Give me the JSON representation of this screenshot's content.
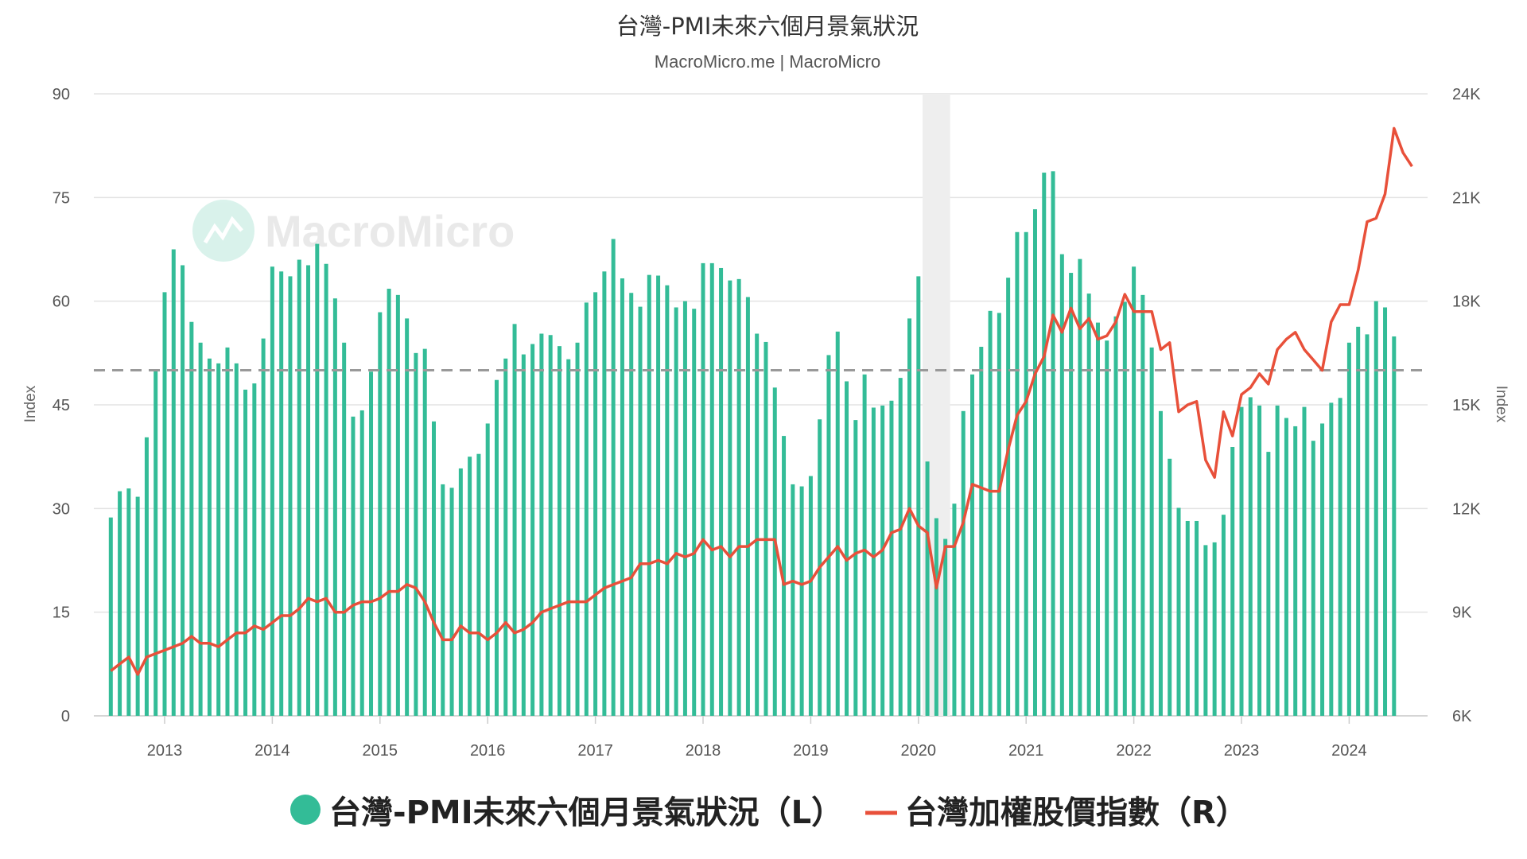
{
  "chart_data": {
    "type": "bar+line",
    "title": "台灣-PMI未來六個月景氣狀況",
    "subtitle": "MacroMicro.me | MacroMicro",
    "watermark": "MacroMicro",
    "ylabel_left": "Index",
    "ylabel_right": "Index",
    "ylim_left": [
      0,
      90
    ],
    "ylim_right": [
      6000,
      24000
    ],
    "yticks_left": [
      "0",
      "15",
      "30",
      "45",
      "60",
      "75",
      "90"
    ],
    "yticks_right": [
      "6K",
      "9K",
      "12K",
      "15K",
      "18K",
      "21K",
      "24K"
    ],
    "xticks": [
      "2013",
      "2014",
      "2015",
      "2016",
      "2017",
      "2018",
      "2019",
      "2020",
      "2021",
      "2022",
      "2023",
      "2024"
    ],
    "reference_line": 50,
    "shaded_period": [
      "2020-02",
      "2020-04"
    ],
    "grid": true,
    "legend_position": "bottom",
    "colors": {
      "bars": "#33bc97",
      "line": "#e8503a",
      "reference": "#999999",
      "shade": "#eeeeee"
    },
    "series": [
      {
        "name": "台灣-PMI未來六個月景氣狀況（L）",
        "axis": "left",
        "kind": "bar",
        "start": "2012-07",
        "values": [
          28.7,
          32.5,
          32.9,
          31.7,
          40.3,
          50.1,
          61.3,
          67.5,
          65.2,
          57,
          54,
          51.7,
          51,
          53.3,
          51,
          47.2,
          48.1,
          54.6,
          65,
          64.3,
          63.6,
          66,
          65.2,
          68.3,
          65.4,
          60.4,
          54,
          43.3,
          44.2,
          49.8,
          58.4,
          61.8,
          60.9,
          57.5,
          52.5,
          53.1,
          42.6,
          33.5,
          33,
          35.8,
          37.5,
          37.9,
          42.3,
          48.6,
          51.7,
          56.7,
          52.3,
          53.8,
          55.3,
          55.1,
          53.5,
          51.6,
          54,
          59.8,
          61.3,
          64.3,
          69,
          63.3,
          61.2,
          59.2,
          63.8,
          63.7,
          62.3,
          59.1,
          60,
          58.9,
          65.5,
          65.5,
          64.8,
          63,
          63.2,
          60.6,
          55.3,
          54.1,
          47.5,
          40.5,
          33.5,
          33.2,
          34.7,
          42.9,
          52.2,
          55.6,
          48.4,
          42.8,
          49.4,
          44.6,
          44.9,
          45.6,
          48.9,
          57.5,
          63.6,
          36.8,
          28.6,
          25.6,
          30.7,
          44.1,
          49.4,
          53.4,
          58.6,
          58.3,
          63.4,
          70,
          70,
          73.3,
          78.6,
          78.8,
          66.8,
          64.1,
          66.1,
          61.1,
          56.9,
          54.3,
          57.8,
          59.9,
          65,
          60.9,
          53.3,
          44.1,
          37.2,
          30.1,
          28.2,
          28.2,
          24.7,
          25.1,
          29.1,
          38.9,
          44.7,
          46.1,
          44.9,
          38.2,
          44.9,
          43.1,
          41.9,
          44.7,
          39.8,
          42.3,
          45.3,
          46,
          54,
          56.3,
          55.2,
          60,
          59.1,
          54.9
        ]
      },
      {
        "name": "台灣加權股價指數（R）",
        "axis": "right",
        "kind": "line",
        "start": "2012-07",
        "values": [
          7300,
          7500,
          7700,
          7200,
          7700,
          7800,
          7900,
          8000,
          8100,
          8300,
          8100,
          8100,
          8000,
          8200,
          8400,
          8400,
          8600,
          8500,
          8700,
          8900,
          8900,
          9100,
          9400,
          9300,
          9400,
          9000,
          9000,
          9200,
          9300,
          9300,
          9400,
          9600,
          9600,
          9800,
          9700,
          9300,
          8700,
          8200,
          8200,
          8600,
          8400,
          8400,
          8200,
          8400,
          8700,
          8400,
          8500,
          8700,
          9000,
          9100,
          9200,
          9300,
          9300,
          9300,
          9500,
          9700,
          9800,
          9900,
          10000,
          10400,
          10400,
          10500,
          10400,
          10700,
          10600,
          10700,
          11100,
          10800,
          10900,
          10600,
          10900,
          10900,
          11100,
          11100,
          11100,
          9800,
          9900,
          9800,
          9900,
          10300,
          10600,
          10900,
          10500,
          10700,
          10800,
          10600,
          10800,
          11300,
          11400,
          12000,
          11500,
          11300,
          9700,
          10900,
          10900,
          11600,
          12700,
          12600,
          12500,
          12500,
          13700,
          14700,
          15100,
          15900,
          16400,
          17600,
          17100,
          17800,
          17200,
          17500,
          16900,
          17000,
          17400,
          18200,
          17700,
          17700,
          17700,
          16600,
          16800,
          14800,
          15000,
          15100,
          13400,
          12900,
          14800,
          14100,
          15300,
          15500,
          15900,
          15600,
          16600,
          16900,
          17100,
          16600,
          16300,
          16000,
          17400,
          17900,
          17900,
          18900,
          20300,
          20400,
          21100,
          23000,
          22300,
          21900
        ]
      }
    ]
  }
}
